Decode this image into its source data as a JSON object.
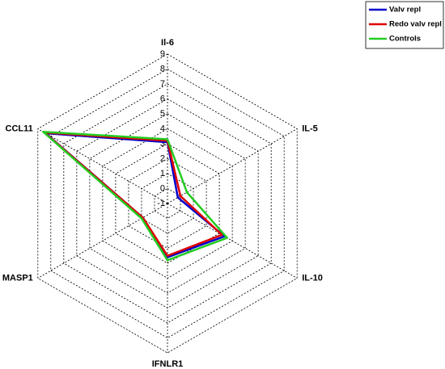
{
  "chart_data": {
    "type": "radar",
    "axes": [
      "Il-6",
      "IL-5",
      "IL-10",
      "IFNLR1",
      "MASP1",
      "CCL11"
    ],
    "rlim": [
      -1,
      9
    ],
    "rticks": [
      -1,
      0,
      1,
      2,
      3,
      4,
      5,
      6,
      7,
      8,
      9
    ],
    "grid": true,
    "legend": "top-right",
    "series": [
      {
        "name": "Valv repl",
        "color": "#0000cc",
        "values": [
          3.1,
          -0.2,
          3.4,
          2.6,
          0.9,
          8.4
        ]
      },
      {
        "name": "Redo valv repl",
        "color": "#e00000",
        "values": [
          3.2,
          0,
          3.2,
          2.5,
          0.9,
          8.5
        ]
      },
      {
        "name": "Controls",
        "color": "#22cc22",
        "values": [
          3.3,
          0.5,
          3.6,
          2.8,
          1.0,
          8.6
        ]
      }
    ]
  }
}
